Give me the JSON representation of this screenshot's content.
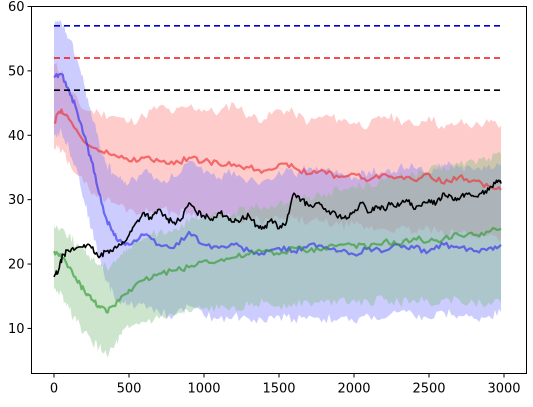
{
  "chart_data": {
    "type": "line",
    "title": "",
    "xlabel": "",
    "ylabel": "",
    "xlim": [
      -150,
      3150
    ],
    "ylim": [
      3,
      60
    ],
    "grid": false,
    "legend": "none",
    "xticks": [
      0,
      500,
      1000,
      1500,
      2000,
      2500,
      3000
    ],
    "yticks": [
      10,
      20,
      30,
      40,
      50,
      60
    ],
    "reference_lines": [
      {
        "y": 57,
        "color": "#0000cc",
        "style": "dashed",
        "x": [
          0,
          3000
        ]
      },
      {
        "y": 52,
        "color": "#ee1111",
        "style": "dashed",
        "x": [
          0,
          3000
        ]
      },
      {
        "y": 47,
        "color": "#000000",
        "style": "dashed",
        "x": [
          0,
          3000
        ]
      }
    ],
    "series": [
      {
        "color": "#ff7f7f",
        "line_color": "#ee3333",
        "x": [
          0,
          50,
          100,
          200,
          300,
          400,
          500,
          600,
          700,
          800,
          900,
          1000,
          1100,
          1200,
          1300,
          1400,
          1500,
          1600,
          1700,
          1800,
          1900,
          2000,
          2100,
          2200,
          2300,
          2400,
          2500,
          2600,
          2700,
          2800,
          2900,
          2980
        ],
        "y": [
          42.0,
          44.0,
          42.5,
          39.0,
          37.5,
          37.0,
          36.0,
          36.5,
          36.0,
          35.5,
          36.5,
          36.0,
          35.5,
          35.5,
          35.0,
          34.5,
          35.5,
          35.0,
          34.0,
          34.5,
          33.5,
          34.0,
          33.0,
          34.0,
          33.5,
          33.0,
          34.0,
          32.5,
          33.5,
          33.0,
          32.0,
          31.5
        ],
        "upper": [
          51.0,
          50.0,
          47.0,
          44.0,
          43.5,
          43.0,
          42.0,
          43.0,
          44.5,
          43.5,
          44.5,
          44.0,
          43.5,
          45.0,
          43.0,
          42.5,
          44.0,
          43.5,
          42.0,
          43.0,
          42.5,
          42.0,
          41.5,
          43.0,
          42.5,
          41.5,
          43.0,
          41.0,
          42.0,
          41.5,
          42.0,
          41.5
        ],
        "lower": [
          38.0,
          37.5,
          36.0,
          32.5,
          30.5,
          29.5,
          28.5,
          28.0,
          28.5,
          28.0,
          28.0,
          27.5,
          27.5,
          27.0,
          27.0,
          26.5,
          27.0,
          27.0,
          26.5,
          26.5,
          26.0,
          26.0,
          25.5,
          25.5,
          25.5,
          25.0,
          25.5,
          24.5,
          25.0,
          24.5,
          24.5,
          24.0
        ]
      },
      {
        "color": "#7f7fff",
        "line_color": "#3333ee",
        "x": [
          0,
          50,
          100,
          150,
          200,
          250,
          300,
          350,
          400,
          450,
          500,
          600,
          700,
          800,
          900,
          1000,
          1100,
          1200,
          1300,
          1400,
          1500,
          1600,
          1700,
          1800,
          1900,
          2000,
          2100,
          2200,
          2300,
          2400,
          2500,
          2600,
          2700,
          2800,
          2900,
          2980
        ],
        "y": [
          49.0,
          49.5,
          47.0,
          44.0,
          40.0,
          36.0,
          31.0,
          27.0,
          24.5,
          23.5,
          23.0,
          24.5,
          23.0,
          22.5,
          25.0,
          23.0,
          22.5,
          23.0,
          22.0,
          21.5,
          22.5,
          22.0,
          23.0,
          22.5,
          22.0,
          21.5,
          22.5,
          22.0,
          23.0,
          22.5,
          22.0,
          23.0,
          22.5,
          22.0,
          22.5,
          23.0
        ],
        "upper": [
          57.0,
          57.5,
          55.0,
          52.0,
          48.0,
          43.0,
          39.0,
          35.5,
          34.0,
          33.0,
          32.5,
          34.5,
          33.0,
          33.5,
          36.0,
          34.0,
          33.5,
          34.5,
          33.0,
          33.0,
          34.5,
          34.0,
          35.0,
          34.5,
          34.0,
          33.5,
          34.5,
          34.0,
          35.0,
          35.0,
          34.0,
          35.5,
          35.0,
          34.5,
          35.5,
          35.5
        ],
        "lower": [
          40.0,
          40.5,
          38.0,
          35.0,
          30.0,
          25.5,
          21.0,
          17.5,
          15.0,
          14.0,
          13.5,
          14.0,
          12.5,
          12.0,
          13.5,
          12.0,
          11.5,
          12.0,
          11.5,
          11.0,
          12.0,
          11.5,
          12.0,
          11.5,
          11.5,
          11.0,
          12.0,
          11.5,
          12.5,
          12.0,
          11.5,
          12.5,
          12.0,
          11.5,
          12.0,
          12.5
        ]
      },
      {
        "color": "#7fbf7f",
        "line_color": "#339933",
        "x": [
          0,
          50,
          100,
          150,
          200,
          250,
          300,
          350,
          400,
          450,
          500,
          600,
          700,
          800,
          900,
          1000,
          1100,
          1200,
          1300,
          1400,
          1500,
          1600,
          1700,
          1800,
          1900,
          2000,
          2100,
          2200,
          2300,
          2400,
          2500,
          2600,
          2700,
          2800,
          2900,
          2980
        ],
        "y": [
          22.0,
          21.0,
          19.5,
          17.5,
          16.0,
          14.5,
          13.5,
          12.5,
          13.5,
          15.0,
          16.0,
          17.5,
          18.5,
          19.0,
          19.5,
          20.5,
          20.5,
          21.0,
          21.5,
          22.0,
          21.5,
          22.5,
          22.0,
          22.5,
          23.0,
          23.0,
          22.5,
          23.5,
          23.0,
          24.0,
          23.5,
          24.0,
          24.5,
          24.5,
          25.0,
          25.5
        ],
        "upper": [
          26.0,
          25.5,
          24.5,
          23.0,
          22.0,
          21.0,
          20.0,
          19.5,
          20.5,
          21.5,
          22.5,
          24.0,
          25.0,
          25.5,
          26.5,
          27.0,
          27.5,
          28.0,
          28.5,
          29.0,
          29.5,
          30.0,
          30.5,
          31.0,
          31.5,
          32.0,
          32.5,
          33.0,
          33.5,
          34.0,
          34.5,
          35.0,
          35.5,
          36.0,
          36.5,
          37.0
        ],
        "lower": [
          16.0,
          15.5,
          13.0,
          11.0,
          9.5,
          8.0,
          7.0,
          6.0,
          7.0,
          9.0,
          10.0,
          11.0,
          11.5,
          12.0,
          12.5,
          13.0,
          13.0,
          13.5,
          13.5,
          14.0,
          13.5,
          14.0,
          14.0,
          14.0,
          14.5,
          14.5,
          14.0,
          14.5,
          14.0,
          14.5,
          14.0,
          14.5,
          14.5,
          14.0,
          14.0,
          14.0
        ]
      },
      {
        "color": "#000000",
        "line_color": "#000000",
        "x": [
          0,
          30,
          60,
          100,
          150,
          200,
          250,
          300,
          350,
          400,
          450,
          500,
          550,
          600,
          650,
          700,
          750,
          800,
          850,
          900,
          950,
          1000,
          1050,
          1100,
          1150,
          1200,
          1250,
          1300,
          1350,
          1400,
          1450,
          1500,
          1550,
          1600,
          1650,
          1700,
          1750,
          1800,
          1850,
          1900,
          1950,
          2000,
          2050,
          2100,
          2150,
          2200,
          2250,
          2300,
          2350,
          2400,
          2450,
          2500,
          2550,
          2600,
          2650,
          2700,
          2750,
          2800,
          2850,
          2900,
          2950,
          2980
        ],
        "y": [
          18.0,
          19.0,
          21.5,
          22.0,
          22.5,
          23.0,
          22.5,
          21.0,
          22.0,
          22.5,
          23.0,
          24.5,
          26.5,
          28.0,
          27.0,
          28.5,
          27.0,
          26.5,
          27.0,
          29.5,
          28.0,
          27.5,
          27.0,
          28.0,
          27.5,
          26.5,
          27.0,
          27.5,
          26.0,
          25.5,
          27.0,
          25.5,
          26.5,
          31.0,
          30.0,
          29.0,
          29.5,
          28.5,
          28.0,
          27.5,
          27.0,
          28.0,
          29.5,
          28.0,
          29.0,
          28.5,
          29.5,
          29.0,
          30.0,
          28.5,
          29.0,
          30.0,
          29.5,
          31.0,
          30.5,
          30.0,
          31.0,
          30.5,
          31.0,
          31.5,
          33.0,
          32.5
        ]
      }
    ]
  }
}
